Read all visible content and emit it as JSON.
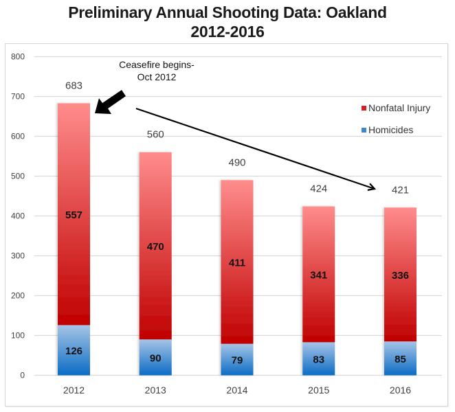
{
  "title_line1": "Preliminary Annual Shooting Data: Oakland",
  "title_line2": "2012-2016",
  "chart_data": {
    "type": "bar",
    "stacked": true,
    "title": "Preliminary Annual Shooting Data: Oakland 2012-2016",
    "xlabel": "",
    "ylabel": "",
    "categories": [
      "2012",
      "2013",
      "2014",
      "2015",
      "2016"
    ],
    "series": [
      {
        "name": "Homicides",
        "values": [
          126,
          90,
          79,
          83,
          85
        ],
        "color": "#2E75B6",
        "color_light": "#9DC3E6"
      },
      {
        "name": "Nonfatal Injury",
        "values": [
          557,
          470,
          411,
          341,
          336
        ],
        "color": "#C00000",
        "color_light": "#FF8C8C"
      }
    ],
    "totals": [
      683,
      560,
      490,
      424,
      421
    ],
    "ylim": [
      0,
      800
    ],
    "yticks": [
      0,
      100,
      200,
      300,
      400,
      500,
      600,
      700,
      800
    ],
    "grid": true,
    "legend": {
      "position": "top-right",
      "entries": [
        "Nonfatal Injury",
        "Homicides"
      ]
    },
    "annotations": [
      {
        "text_line1": "Ceasefire begins-",
        "text_line2": "Oct 2012",
        "points_to": "2012"
      },
      {
        "type": "trend-arrow",
        "from": "2012",
        "to": "2016"
      }
    ]
  }
}
